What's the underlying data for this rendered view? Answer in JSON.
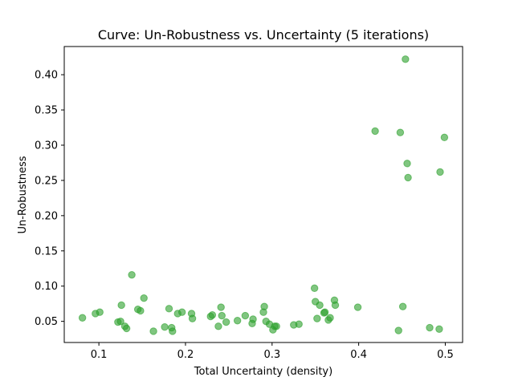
{
  "chart_data": {
    "type": "scatter",
    "title": "Curve: Un-Robustness vs. Uncertainty (5 iterations)",
    "xlabel": "Total Uncertainty (density)",
    "ylabel": "Un-Robustness",
    "xlim": [
      0.06,
      0.52
    ],
    "ylim": [
      0.02,
      0.44
    ],
    "xticks": [
      {
        "value": 0.1,
        "label": "0.1"
      },
      {
        "value": 0.2,
        "label": "0.2"
      },
      {
        "value": 0.3,
        "label": "0.3"
      },
      {
        "value": 0.4,
        "label": "0.4"
      },
      {
        "value": 0.5,
        "label": "0.5"
      }
    ],
    "yticks": [
      {
        "value": 0.05,
        "label": "0.05"
      },
      {
        "value": 0.1,
        "label": "0.10"
      },
      {
        "value": 0.15,
        "label": "0.15"
      },
      {
        "value": 0.2,
        "label": "0.20"
      },
      {
        "value": 0.25,
        "label": "0.25"
      },
      {
        "value": 0.3,
        "label": "0.30"
      },
      {
        "value": 0.35,
        "label": "0.35"
      },
      {
        "value": 0.4,
        "label": "0.40"
      }
    ],
    "grid": false,
    "marker_color": "#2ca02c",
    "marker_alpha": 0.6,
    "points": [
      {
        "x": 0.081,
        "y": 0.055
      },
      {
        "x": 0.096,
        "y": 0.061
      },
      {
        "x": 0.101,
        "y": 0.063
      },
      {
        "x": 0.122,
        "y": 0.049
      },
      {
        "x": 0.125,
        "y": 0.05
      },
      {
        "x": 0.126,
        "y": 0.073
      },
      {
        "x": 0.13,
        "y": 0.043
      },
      {
        "x": 0.132,
        "y": 0.04
      },
      {
        "x": 0.138,
        "y": 0.116
      },
      {
        "x": 0.145,
        "y": 0.067
      },
      {
        "x": 0.148,
        "y": 0.065
      },
      {
        "x": 0.152,
        "y": 0.083
      },
      {
        "x": 0.163,
        "y": 0.036
      },
      {
        "x": 0.176,
        "y": 0.042
      },
      {
        "x": 0.181,
        "y": 0.068
      },
      {
        "x": 0.184,
        "y": 0.041
      },
      {
        "x": 0.185,
        "y": 0.036
      },
      {
        "x": 0.191,
        "y": 0.061
      },
      {
        "x": 0.196,
        "y": 0.063
      },
      {
        "x": 0.207,
        "y": 0.061
      },
      {
        "x": 0.208,
        "y": 0.054
      },
      {
        "x": 0.229,
        "y": 0.057
      },
      {
        "x": 0.231,
        "y": 0.059
      },
      {
        "x": 0.238,
        "y": 0.043
      },
      {
        "x": 0.241,
        "y": 0.07
      },
      {
        "x": 0.242,
        "y": 0.058
      },
      {
        "x": 0.247,
        "y": 0.049
      },
      {
        "x": 0.26,
        "y": 0.051
      },
      {
        "x": 0.269,
        "y": 0.058
      },
      {
        "x": 0.277,
        "y": 0.047
      },
      {
        "x": 0.278,
        "y": 0.053
      },
      {
        "x": 0.29,
        "y": 0.063
      },
      {
        "x": 0.291,
        "y": 0.071
      },
      {
        "x": 0.293,
        "y": 0.05
      },
      {
        "x": 0.297,
        "y": 0.046
      },
      {
        "x": 0.301,
        "y": 0.038
      },
      {
        "x": 0.303,
        "y": 0.043
      },
      {
        "x": 0.305,
        "y": 0.043
      },
      {
        "x": 0.325,
        "y": 0.045
      },
      {
        "x": 0.331,
        "y": 0.046
      },
      {
        "x": 0.349,
        "y": 0.097
      },
      {
        "x": 0.35,
        "y": 0.078
      },
      {
        "x": 0.352,
        "y": 0.054
      },
      {
        "x": 0.355,
        "y": 0.073
      },
      {
        "x": 0.36,
        "y": 0.062
      },
      {
        "x": 0.361,
        "y": 0.063
      },
      {
        "x": 0.365,
        "y": 0.052
      },
      {
        "x": 0.367,
        "y": 0.055
      },
      {
        "x": 0.372,
        "y": 0.08
      },
      {
        "x": 0.373,
        "y": 0.073
      },
      {
        "x": 0.399,
        "y": 0.07
      },
      {
        "x": 0.419,
        "y": 0.32
      },
      {
        "x": 0.446,
        "y": 0.037
      },
      {
        "x": 0.448,
        "y": 0.318
      },
      {
        "x": 0.451,
        "y": 0.071
      },
      {
        "x": 0.454,
        "y": 0.422
      },
      {
        "x": 0.456,
        "y": 0.274
      },
      {
        "x": 0.457,
        "y": 0.254
      },
      {
        "x": 0.482,
        "y": 0.041
      },
      {
        "x": 0.493,
        "y": 0.039
      },
      {
        "x": 0.494,
        "y": 0.262
      },
      {
        "x": 0.499,
        "y": 0.311
      }
    ]
  }
}
